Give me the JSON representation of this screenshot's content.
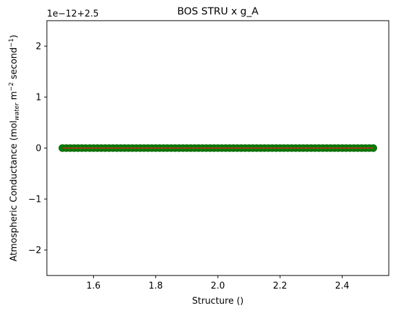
{
  "chart_data": {
    "type": "scatter",
    "title": "BOS STRU x g_A",
    "xlabel": "Structure ()",
    "ylabel_main": "Atmospheric Conductance (mol",
    "ylabel_sub": "water",
    "ylabel_mid1": " m",
    "ylabel_sup1": "−2",
    "ylabel_mid2": " second",
    "ylabel_sup2": "−1",
    "ylabel_end": ")",
    "offset_label": "1e−12+2.5",
    "xlim": [
      1.45,
      2.55
    ],
    "ylim": [
      -2.5,
      2.5
    ],
    "x_ticks": [
      1.6,
      1.8,
      2.0,
      2.2,
      2.4
    ],
    "x_tick_labels": [
      "1.6",
      "1.8",
      "2.0",
      "2.2",
      "2.4"
    ],
    "y_ticks": [
      -2,
      -1,
      0,
      1,
      2
    ],
    "y_tick_labels": [
      "−2",
      "−1",
      "0",
      "1",
      "2"
    ],
    "grid": false,
    "series": [
      {
        "kind": "scatter",
        "x_start": 1.5,
        "x_end": 2.5,
        "count": 81,
        "y": 0,
        "color": "#008000",
        "edgecolor": "#006400"
      },
      {
        "kind": "line",
        "x": [
          1.5,
          2.5
        ],
        "y": [
          0,
          0
        ],
        "color": "#d62728"
      }
    ]
  }
}
